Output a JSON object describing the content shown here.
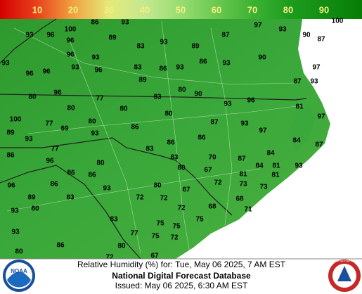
{
  "legend": {
    "ticks": [
      10,
      20,
      30,
      40,
      50,
      60,
      70,
      80,
      90
    ]
  },
  "points": [
    100,
    86,
    93,
    93,
    96,
    96,
    89,
    97,
    93,
    87,
    90,
    87,
    100,
    93,
    83,
    89,
    96,
    93,
    93,
    93,
    96,
    96,
    96,
    83,
    86,
    93,
    86,
    93,
    90,
    97,
    87,
    93,
    89,
    96,
    80,
    77,
    83,
    80,
    90,
    80,
    80,
    93,
    96,
    81,
    80,
    100,
    77,
    69,
    80,
    86,
    87,
    93,
    97,
    89,
    93,
    93,
    86,
    97,
    84,
    86,
    77,
    83,
    87,
    84,
    87,
    70,
    83,
    86,
    96,
    80,
    81,
    84,
    93,
    67,
    80,
    86,
    86,
    81,
    81,
    72,
    73,
    73,
    96,
    86,
    93,
    80,
    67,
    89,
    83,
    72,
    72,
    68,
    80,
    93,
    68,
    71,
    72,
    83,
    75,
    75,
    75,
    93,
    77,
    75,
    72,
    86,
    80,
    80,
    72,
    67
  ],
  "footer": {
    "line1": "Relative Humidity (%) for: Tue, May 06 2025, 7 AM EST",
    "line2": "National Digital Forecast Database",
    "line3": "Issued: May 06 2025, 6:30 AM EST"
  },
  "logos": {
    "left": "NOAA",
    "right": "NATIONAL WEATHER SERVICE"
  }
}
